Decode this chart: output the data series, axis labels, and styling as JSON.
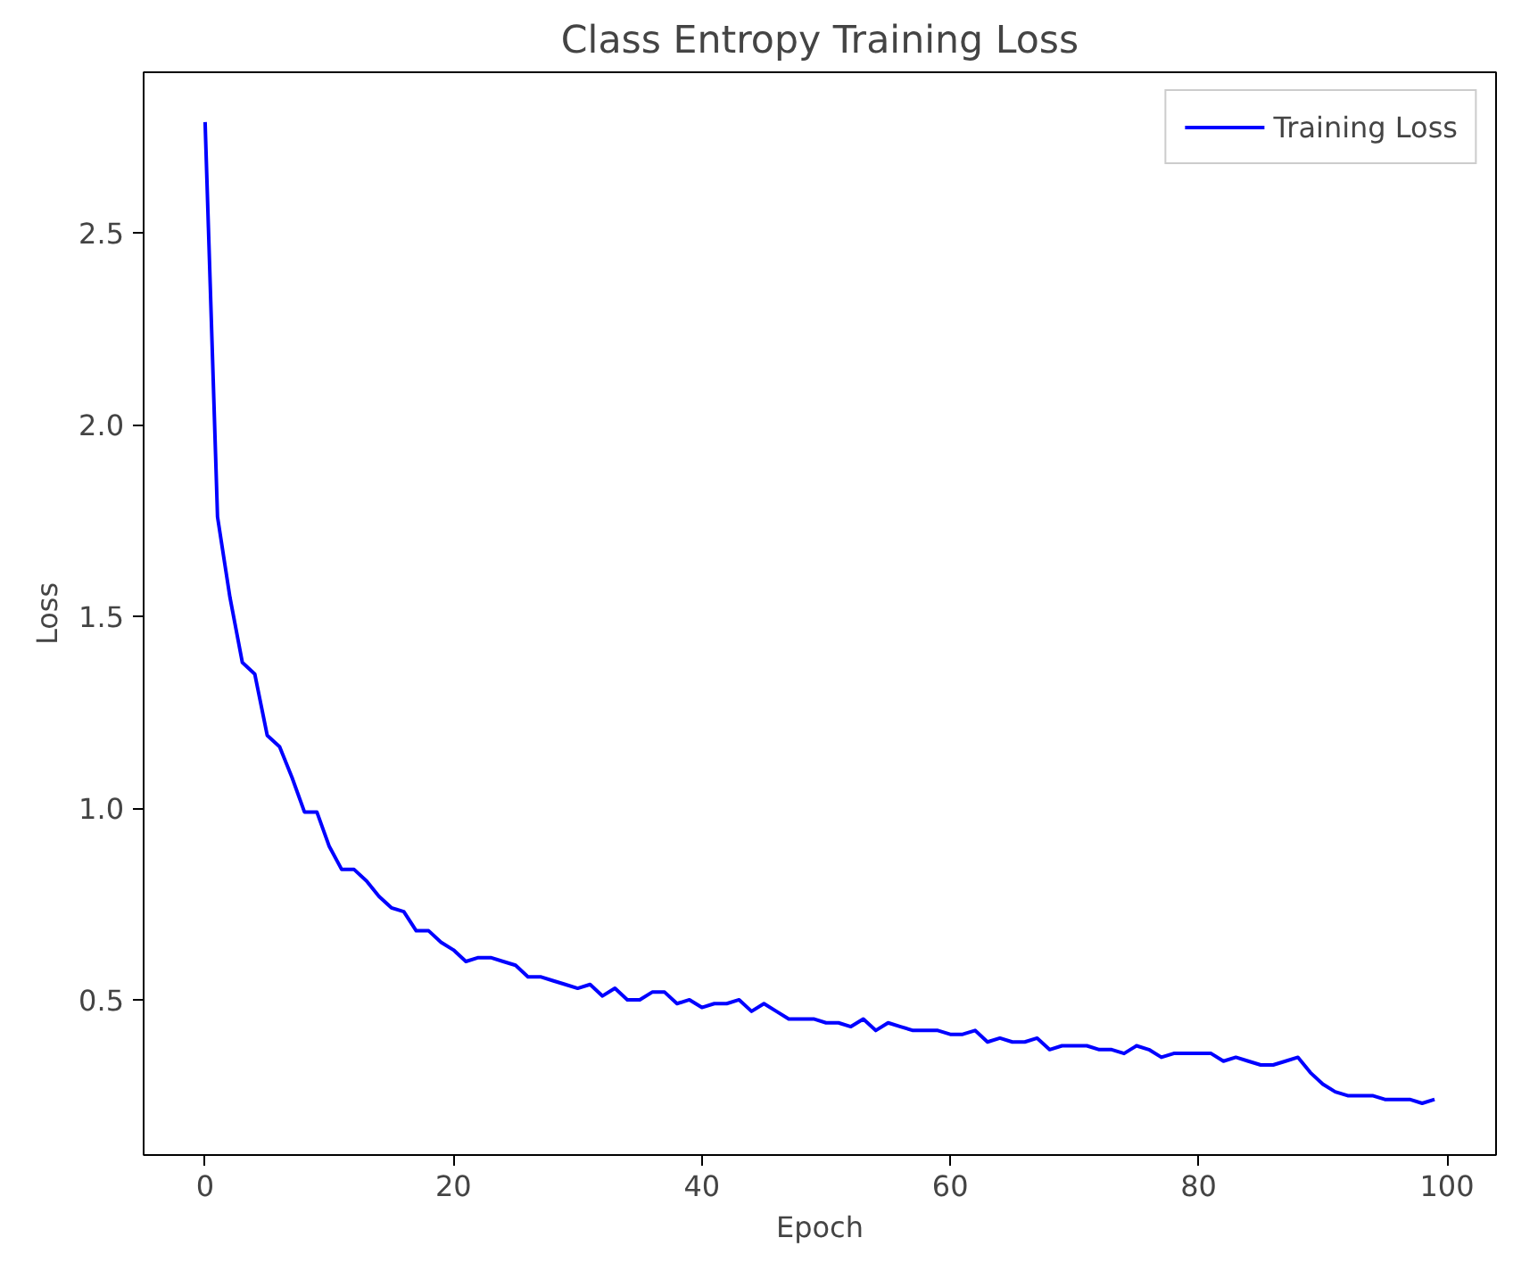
{
  "chart_data": {
    "type": "line",
    "title": "Class Entropy Training Loss",
    "xlabel": "Epoch",
    "ylabel": "Loss",
    "x": [
      0,
      1,
      2,
      3,
      4,
      5,
      6,
      7,
      8,
      9,
      10,
      11,
      12,
      13,
      14,
      15,
      16,
      17,
      18,
      19,
      20,
      21,
      22,
      23,
      24,
      25,
      26,
      27,
      28,
      29,
      30,
      31,
      32,
      33,
      34,
      35,
      36,
      37,
      38,
      39,
      40,
      41,
      42,
      43,
      44,
      45,
      46,
      47,
      48,
      49,
      50,
      51,
      52,
      53,
      54,
      55,
      56,
      57,
      58,
      59,
      60,
      61,
      62,
      63,
      64,
      65,
      66,
      67,
      68,
      69,
      70,
      71,
      72,
      73,
      74,
      75,
      76,
      77,
      78,
      79,
      80,
      81,
      82,
      83,
      84,
      85,
      86,
      87,
      88,
      89,
      90,
      91,
      92,
      93,
      94,
      95,
      96,
      97,
      98,
      99
    ],
    "series": [
      {
        "name": "Training Loss",
        "color": "#0000ff",
        "values": [
          2.79,
          1.76,
          1.55,
          1.38,
          1.35,
          1.19,
          1.16,
          1.08,
          0.99,
          0.99,
          0.9,
          0.84,
          0.84,
          0.81,
          0.77,
          0.74,
          0.73,
          0.68,
          0.68,
          0.65,
          0.63,
          0.6,
          0.61,
          0.61,
          0.6,
          0.59,
          0.56,
          0.56,
          0.55,
          0.54,
          0.53,
          0.54,
          0.51,
          0.53,
          0.5,
          0.5,
          0.52,
          0.52,
          0.49,
          0.5,
          0.48,
          0.49,
          0.49,
          0.5,
          0.47,
          0.49,
          0.47,
          0.45,
          0.45,
          0.45,
          0.44,
          0.44,
          0.43,
          0.45,
          0.42,
          0.44,
          0.43,
          0.42,
          0.42,
          0.42,
          0.41,
          0.41,
          0.42,
          0.39,
          0.4,
          0.39,
          0.39,
          0.4,
          0.37,
          0.38,
          0.38,
          0.38,
          0.37,
          0.37,
          0.36,
          0.38,
          0.37,
          0.35,
          0.36,
          0.36,
          0.36,
          0.36,
          0.34,
          0.35,
          0.34,
          0.33,
          0.33,
          0.34,
          0.35,
          0.31,
          0.28,
          0.26,
          0.25,
          0.25,
          0.25,
          0.24,
          0.24,
          0.24,
          0.23,
          0.24
        ]
      }
    ],
    "xlim": [
      -4.95,
      103.95
    ],
    "ylim": [
      0.095,
      2.92
    ],
    "xticks": [
      0,
      20,
      40,
      60,
      80,
      100
    ],
    "yticks": [
      0.5,
      {
        "value": 1,
        "label": "1.0"
      },
      1.5,
      {
        "value": 2,
        "label": "2.0"
      },
      2.5
    ],
    "legend": "top right",
    "grid": false,
    "marker": "none",
    "line_style": "solid"
  }
}
